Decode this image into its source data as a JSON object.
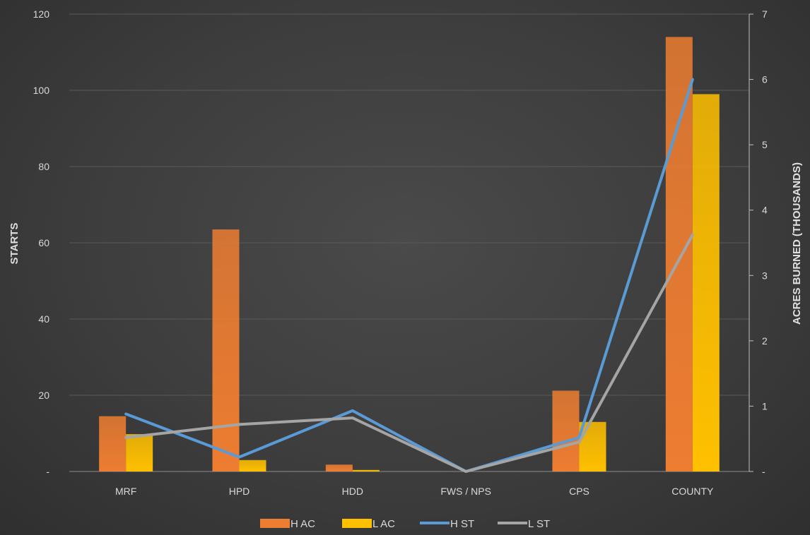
{
  "chart_data": {
    "type": "bar",
    "categories": [
      "MRF",
      "HPD",
      "HDD",
      "FWS / NPS",
      "CPS",
      "COUNTY"
    ],
    "series": [
      {
        "name": "H AC",
        "type": "bar",
        "axis": "left",
        "color": "#ed7d31",
        "values": [
          14.5,
          63.5,
          1.8,
          0,
          21.2,
          114
        ]
      },
      {
        "name": "L AC",
        "type": "bar",
        "axis": "left",
        "color": "#ffc000",
        "values": [
          9.8,
          3.0,
          0.4,
          0,
          13.0,
          99
        ]
      },
      {
        "name": "H ST",
        "type": "line",
        "axis": "right",
        "color": "#5b9bd5",
        "values": [
          0.88,
          0.22,
          0.93,
          0,
          0.52,
          6.0
        ]
      },
      {
        "name": "L ST",
        "type": "line",
        "axis": "right",
        "color": "#a5a5a5",
        "values": [
          0.52,
          0.72,
          0.82,
          0,
          0.45,
          3.62
        ]
      }
    ],
    "ylabel": "STARTS",
    "y2label": "ACRES BURNED (THOUSANDS)",
    "ylim": [
      0,
      120
    ],
    "y2lim": [
      0,
      7
    ],
    "yticks": [
      "-",
      "20",
      "40",
      "60",
      "80",
      "100",
      "120"
    ],
    "y2ticks": [
      "-",
      "1",
      "2",
      "3",
      "4",
      "5",
      "6",
      "7"
    ],
    "grid": true,
    "legend_position": "bottom"
  }
}
